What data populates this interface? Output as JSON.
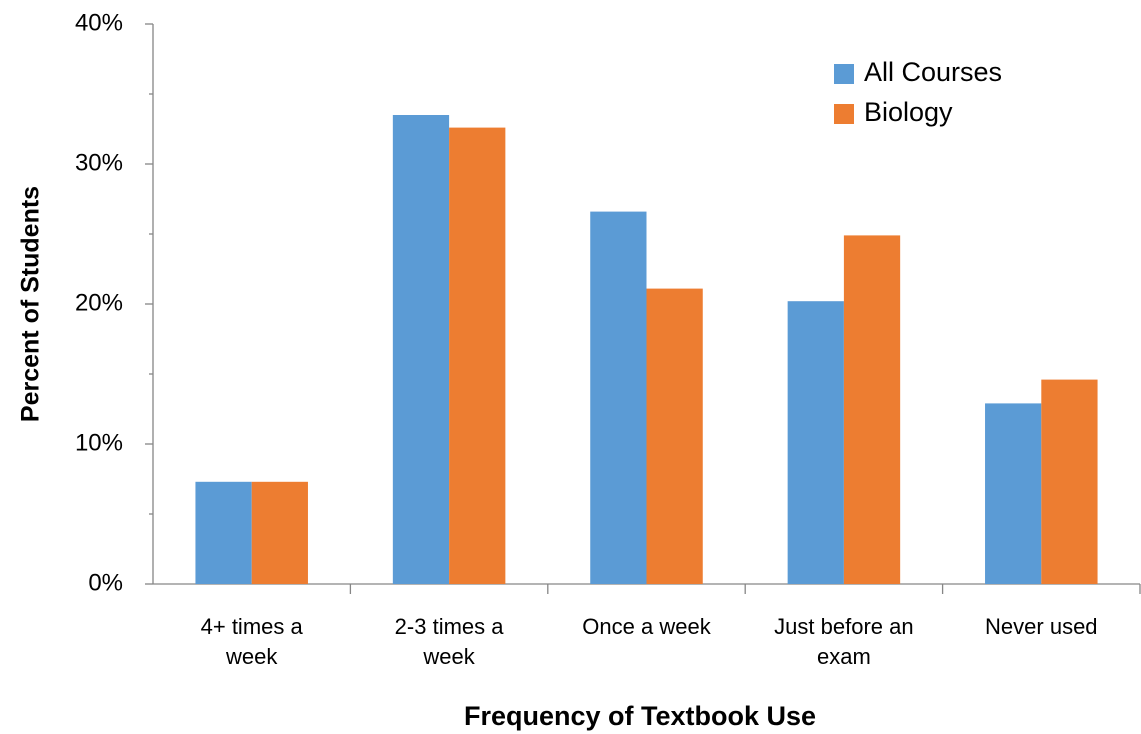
{
  "chart_data": {
    "type": "bar",
    "x_label": "Frequency of Textbook Use",
    "y_label": "Percent of Students",
    "categories": [
      "4+ times a week",
      "2-3 times a week",
      "Once a week",
      "Just before an exam",
      "Never used"
    ],
    "series": [
      {
        "name": "All Courses",
        "color": "#5b9bd5",
        "values": [
          7.3,
          33.5,
          26.6,
          20.2,
          12.9
        ]
      },
      {
        "name": "Biology",
        "color": "#ed7d31",
        "values": [
          7.3,
          32.6,
          21.1,
          24.9,
          14.6
        ]
      }
    ],
    "ylim": [
      0,
      40
    ],
    "yticks": [
      {
        "value": 0,
        "label": "0%"
      },
      {
        "value": 10,
        "label": "10%"
      },
      {
        "value": 20,
        "label": "20%"
      },
      {
        "value": 30,
        "label": "30%"
      },
      {
        "value": 40,
        "label": "40%"
      }
    ],
    "yminor_ticks": [
      5,
      15,
      25,
      35
    ],
    "grid": false,
    "legend": "top-right"
  }
}
